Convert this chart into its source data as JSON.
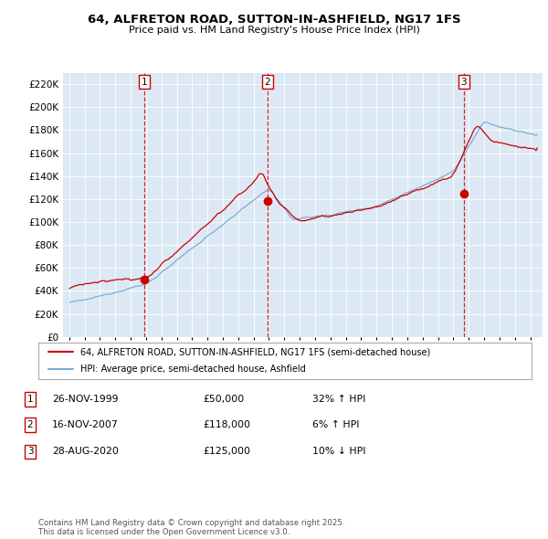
{
  "title_line1": "64, ALFRETON ROAD, SUTTON-IN-ASHFIELD, NG17 1FS",
  "title_line2": "Price paid vs. HM Land Registry's House Price Index (HPI)",
  "ylim": [
    0,
    230000
  ],
  "yticks": [
    0,
    20000,
    40000,
    60000,
    80000,
    100000,
    120000,
    140000,
    160000,
    180000,
    200000,
    220000
  ],
  "ytick_labels": [
    "£0",
    "£20K",
    "£40K",
    "£60K",
    "£80K",
    "£100K",
    "£120K",
    "£140K",
    "£160K",
    "£180K",
    "£200K",
    "£220K"
  ],
  "plot_bg_color": "#dce9f5",
  "sale1_x": 1999.9,
  "sale1_price": 50000,
  "sale1_label": "1",
  "sale2_x": 2007.9,
  "sale2_price": 118000,
  "sale2_label": "2",
  "sale3_x": 2020.67,
  "sale3_price": 125000,
  "sale3_label": "3",
  "legend_line1": "64, ALFRETON ROAD, SUTTON-IN-ASHFIELD, NG17 1FS (semi-detached house)",
  "legend_line2": "HPI: Average price, semi-detached house, Ashfield",
  "table_entries": [
    {
      "num": "1",
      "date": "26-NOV-1999",
      "price": "£50,000",
      "hpi": "32% ↑ HPI"
    },
    {
      "num": "2",
      "date": "16-NOV-2007",
      "price": "£118,000",
      "hpi": "6% ↑ HPI"
    },
    {
      "num": "3",
      "date": "28-AUG-2020",
      "price": "£125,000",
      "hpi": "10% ↓ HPI"
    }
  ],
  "footnote": "Contains HM Land Registry data © Crown copyright and database right 2025.\nThis data is licensed under the Open Government Licence v3.0.",
  "red_color": "#cc0000",
  "blue_color": "#7aadd4"
}
